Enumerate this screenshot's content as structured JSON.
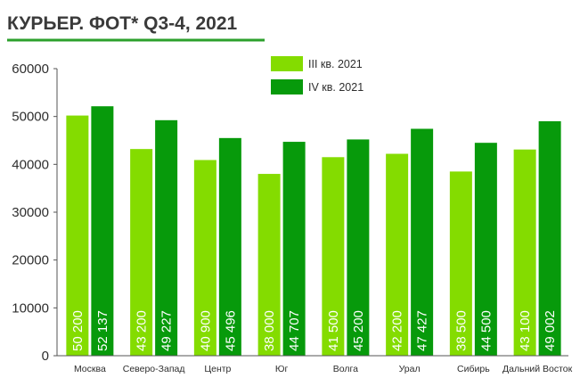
{
  "chart_data": {
    "type": "bar",
    "title": "КУРЬЕР. ФОТ* Q3-4, 2021",
    "categories": [
      "Москва",
      "Северо-Запад",
      "Центр",
      "Юг",
      "Волга",
      "Урал",
      "Сибирь",
      "Дальний Восток"
    ],
    "series": [
      {
        "name": "III кв. 2021",
        "color": "#84dc00",
        "values": [
          50200,
          43200,
          40900,
          38000,
          41500,
          42200,
          38500,
          43100
        ],
        "labels": [
          "50 200",
          "43 200",
          "40 900",
          "38 000",
          "41 500",
          "42 200",
          "38 500",
          "43 100"
        ]
      },
      {
        "name": "IV кв. 2021",
        "color": "#079a0b",
        "values": [
          52137,
          49227,
          45496,
          44707,
          45200,
          47427,
          44500,
          49002
        ],
        "labels": [
          "52 137",
          "49 227",
          "45 496",
          "44 707",
          "45 200",
          "47 427",
          "44 500",
          "49 002"
        ]
      }
    ],
    "yticks": [
      "0",
      "10000",
      "20000",
      "30000",
      "40000",
      "50000",
      "60000"
    ],
    "ylim": [
      0,
      60000
    ],
    "grid": false,
    "legend_position": "top-right",
    "xlabel": "",
    "ylabel": ""
  },
  "colors": {
    "title_underline": "#2ca02c",
    "axis": "#555555"
  }
}
